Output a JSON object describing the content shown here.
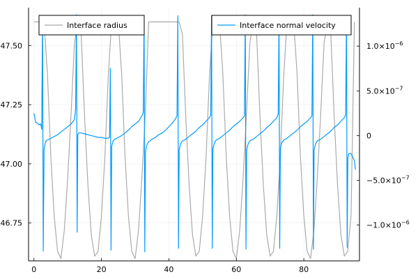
{
  "chart_data": {
    "type": "line",
    "twin_axes": true,
    "grid": true,
    "x": {
      "range": [
        -1.6,
        96.5
      ],
      "ticks": [
        0,
        20,
        40,
        60,
        80
      ],
      "tick_labels": [
        "0",
        "20",
        "40",
        "60",
        "80"
      ]
    },
    "y_left": {
      "range": [
        46.59,
        47.66
      ],
      "ticks": [
        46.75,
        47.0,
        47.25,
        47.5
      ],
      "tick_labels": [
        "46.75",
        "47.00",
        "47.25",
        "47.50"
      ]
    },
    "y_right": {
      "range": [
        -1.4e-06,
        1.43e-06
      ],
      "ticks": [
        -1e-06,
        -5e-07,
        0,
        5e-07,
        1e-06
      ],
      "tick_labels": [
        {
          "mant": "−1.0×10",
          "exp": "−6"
        },
        {
          "mant": "−5.0×10",
          "exp": "−7"
        },
        {
          "mant": "0",
          "exp": ""
        },
        {
          "mant": "5.0×10",
          "exp": "−7"
        },
        {
          "mant": "1.0×10",
          "exp": "−6"
        }
      ]
    },
    "legend_placement": [
      "top-left",
      "top-right"
    ],
    "series": [
      {
        "name": "Interface radius",
        "axis": "left",
        "color": "#aaaaaa",
        "x": [
          0,
          1,
          2,
          3,
          4,
          5,
          6,
          7,
          8,
          9,
          10,
          11,
          12,
          13,
          14,
          15,
          16,
          17,
          18,
          19,
          20,
          21,
          22,
          23,
          24,
          25,
          26,
          27,
          28,
          29,
          30,
          31,
          32,
          33,
          34,
          35,
          36,
          37,
          38,
          39,
          40,
          41,
          42,
          43,
          44,
          45,
          46,
          47,
          48,
          49,
          50,
          51,
          52,
          53,
          54,
          55,
          56,
          57,
          58,
          59,
          60,
          61,
          62,
          63,
          64,
          65,
          66,
          67,
          68,
          69,
          70,
          71,
          72,
          73,
          74,
          75,
          76,
          77,
          78,
          79,
          80,
          81,
          82,
          83,
          84,
          85,
          86,
          87,
          88,
          89,
          90,
          91,
          92,
          93,
          94,
          95
        ],
        "y": [
          47.6,
          47.6,
          47.6,
          47.6,
          47.38,
          47.03,
          46.78,
          46.63,
          46.6,
          46.72,
          46.94,
          47.21,
          47.51,
          47.6,
          47.55,
          47.2,
          46.91,
          46.7,
          46.61,
          46.63,
          46.78,
          47.02,
          47.36,
          47.6,
          47.6,
          47.6,
          47.38,
          47.03,
          46.78,
          46.63,
          46.6,
          46.72,
          46.94,
          47.21,
          47.6,
          47.6,
          47.6,
          47.6,
          47.6,
          47.6,
          47.6,
          47.6,
          47.6,
          47.6,
          47.55,
          47.2,
          46.91,
          46.7,
          46.61,
          46.63,
          46.78,
          47.02,
          47.36,
          47.6,
          47.6,
          47.6,
          47.38,
          47.03,
          46.78,
          46.63,
          46.6,
          46.72,
          46.94,
          47.21,
          47.51,
          47.6,
          47.55,
          47.2,
          46.91,
          46.7,
          46.61,
          46.63,
          46.78,
          47.02,
          47.36,
          47.6,
          47.6,
          47.6,
          47.38,
          47.03,
          46.78,
          46.63,
          46.6,
          46.72,
          46.94,
          47.21,
          47.51,
          47.6,
          47.55,
          47.2,
          46.91,
          46.7,
          46.61,
          46.63,
          46.78,
          47.6
        ]
      },
      {
        "name": "Interface normal velocity",
        "axis": "right",
        "color": "#009AFA",
        "x": [
          0,
          0.5,
          1.0,
          1.5,
          2.0,
          2.3,
          2.55,
          2.75,
          3.0,
          3.3,
          3.6,
          4.0,
          5,
          6,
          7,
          8,
          9,
          10,
          11,
          12,
          12.35,
          12.6,
          12.8,
          13.0,
          13.3,
          13.6,
          14.0,
          15,
          16,
          17,
          18,
          19,
          20,
          21,
          22,
          22.4,
          22.65,
          22.85,
          23.05,
          23.35,
          23.65,
          24.0,
          25,
          26,
          27,
          28,
          29,
          30,
          31,
          32,
          32.4,
          32.65,
          32.85,
          33.05,
          33.35,
          33.65,
          34.0,
          35,
          36,
          37,
          38,
          39,
          40,
          41,
          42,
          42.4,
          42.65,
          42.85,
          43.05,
          43.35,
          43.65,
          44.0,
          45,
          46,
          47,
          48,
          49,
          50,
          51,
          52,
          52.4,
          52.65,
          52.85,
          53.05,
          53.35,
          53.65,
          54.0,
          55,
          56,
          57,
          58,
          59,
          60,
          61,
          62,
          62.4,
          62.65,
          62.85,
          63.05,
          63.35,
          63.65,
          64.0,
          65,
          66,
          67,
          68,
          69,
          70,
          71,
          72,
          72.4,
          72.65,
          72.85,
          73.05,
          73.35,
          73.65,
          74.0,
          75,
          76,
          77,
          78,
          79,
          80,
          81,
          82,
          82.4,
          82.65,
          82.85,
          83.05,
          83.35,
          83.65,
          84.0,
          85,
          86,
          87,
          88,
          89,
          90,
          91,
          92,
          92.4,
          92.65,
          92.85,
          93.05,
          93.35,
          93.65,
          94.0,
          94.5,
          95,
          95.3
        ],
        "y": [
          2.5e-07,
          1.5e-07,
          1.4e-07,
          1.2e-07,
          1.3e-07,
          7e-08,
          1.33e-06,
          -1.29e-06,
          -1.5e-07,
          -9e-08,
          -6e-08,
          -5e-08,
          -3e-08,
          -1e-08,
          1e-08,
          4e-08,
          7e-08,
          1e-07,
          1.3e-07,
          1.8e-07,
          3e-07,
          1.35e-06,
          -1.08e-06,
          1e-08,
          3e-08,
          3e-08,
          3e-08,
          2e-08,
          1e-08,
          0,
          -1e-08,
          -2e-08,
          -2e-08,
          -3e-08,
          -3e-08,
          -2e-08,
          7.5e-07,
          -1.28e-06,
          -1.2e-07,
          -7e-08,
          -5e-08,
          -4e-08,
          -2e-08,
          0,
          3e-08,
          6e-08,
          1e-07,
          1.3e-07,
          1.6e-07,
          2.2e-07,
          2.6e-07,
          1.34e-06,
          -1.3e-06,
          -1.8e-07,
          -1.2e-07,
          -9e-08,
          -7e-08,
          -4e-08,
          -2e-08,
          1e-08,
          3e-08,
          6e-08,
          1e-07,
          1.4e-07,
          1.9e-07,
          2.2e-07,
          1.34e-06,
          -1.26e-06,
          -1.6e-07,
          -1.1e-07,
          -8e-08,
          -6e-08,
          -4e-08,
          -1e-08,
          2e-08,
          5e-08,
          9e-08,
          1.2e-07,
          1.6e-07,
          2e-07,
          2.3e-07,
          1.34e-06,
          -1.26e-06,
          -1.5e-07,
          -1e-07,
          -7e-08,
          -5e-08,
          -3e-08,
          0,
          3e-08,
          6e-08,
          1e-07,
          1.3e-07,
          1.6e-07,
          2e-07,
          2.2e-07,
          1.35e-06,
          -1.27e-06,
          -1.6e-07,
          -1.1e-07,
          -8e-08,
          -6e-08,
          -4e-08,
          -1e-08,
          2e-08,
          5e-08,
          9e-08,
          1.2e-07,
          1.6e-07,
          2e-07,
          2.4e-07,
          1.34e-06,
          -1.26e-06,
          -1.4e-07,
          -9e-08,
          -7e-08,
          -5e-08,
          -3e-08,
          0,
          3e-08,
          6e-08,
          1e-07,
          1.3e-07,
          1.6e-07,
          2e-07,
          2.2e-07,
          1.35e-06,
          -1.27e-06,
          -1.6e-07,
          -1.1e-07,
          -8e-08,
          -6e-08,
          -4e-08,
          -1e-08,
          2e-08,
          5e-08,
          9e-08,
          1.2e-07,
          1.6e-07,
          2e-07,
          2.3e-07,
          1.34e-06,
          -1.25e-06,
          -2.5e-07,
          -2e-07,
          -2e-07,
          -2e-07,
          -2.4e-07,
          -2.8e-07,
          -3.8e-07
        ]
      }
    ]
  }
}
